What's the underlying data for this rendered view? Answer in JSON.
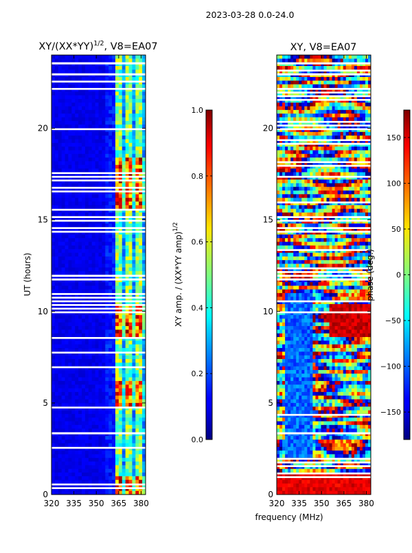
{
  "figure": {
    "suptitle": "2023-03-28 0.0-24.0",
    "xlabel": "frequency (MHz)",
    "ylabel": "UT (hours)"
  },
  "chart_data": [
    {
      "type": "heatmap",
      "title": "XY/(XX*YY)^{1/2}, V8=EA07",
      "title_main": "XY/(XX*YY)",
      "title_sup": "1/2",
      "title_tail": ", V8=EA07",
      "xlabel": "frequency (MHz)",
      "ylabel": "UT (hours)",
      "xlim": [
        320,
        383
      ],
      "ylim": [
        0,
        24
      ],
      "xticks": [
        320,
        335,
        350,
        365,
        380
      ],
      "yticks": [
        0,
        5,
        10,
        15,
        20
      ],
      "colormap": "jet",
      "colorbar": {
        "label": "XY amp. / (XX*YY amp)^{1/2}",
        "label_main": "XY amp. / (XX*YY amp)",
        "label_sup": "1/2",
        "range": [
          0.0,
          1.0
        ],
        "ticks": [
          "0.0",
          "0.2",
          "0.4",
          "0.6",
          "0.8",
          "1.0"
        ],
        "tick_values": [
          0.0,
          0.2,
          0.4,
          0.6,
          0.8,
          1.0
        ]
      },
      "features": [
        {
          "freq_range": [
            320,
            360
          ],
          "value_approx": 0.1
        },
        {
          "freq_range": [
            360,
            382
          ],
          "value_approx": 0.5
        },
        {
          "ut_range": [
            0,
            1
          ],
          "freq_range": [
            360,
            382
          ],
          "value_approx": 0.9
        },
        {
          "ut_range": [
            4.8,
            6.2
          ],
          "freq_range": [
            360,
            382
          ],
          "value_approx": 0.95
        },
        {
          "ut_range": [
            8.5,
            10.5
          ],
          "freq_range": [
            360,
            382
          ],
          "value_approx": 0.8
        },
        {
          "ut_range": [
            15.5,
            18.5
          ],
          "freq_range": [
            360,
            382
          ],
          "value_approx": 0.75
        }
      ]
    },
    {
      "type": "heatmap",
      "title": "XY, V8=EA07",
      "xlabel": "frequency (MHz)",
      "ylabel": "",
      "xlim": [
        320,
        383
      ],
      "ylim": [
        0,
        24
      ],
      "xticks": [
        320,
        335,
        350,
        365,
        380
      ],
      "yticks": [
        0,
        5,
        10,
        15,
        20
      ],
      "colormap": "jet",
      "colorbar": {
        "label": "phase (deg.)",
        "range": [
          -180,
          180
        ],
        "ticks": [
          "−150",
          "−100",
          "−50",
          "0",
          "50",
          "100",
          "150"
        ],
        "tick_values": [
          -150,
          -100,
          -50,
          0,
          50,
          100,
          150
        ]
      }
    }
  ]
}
